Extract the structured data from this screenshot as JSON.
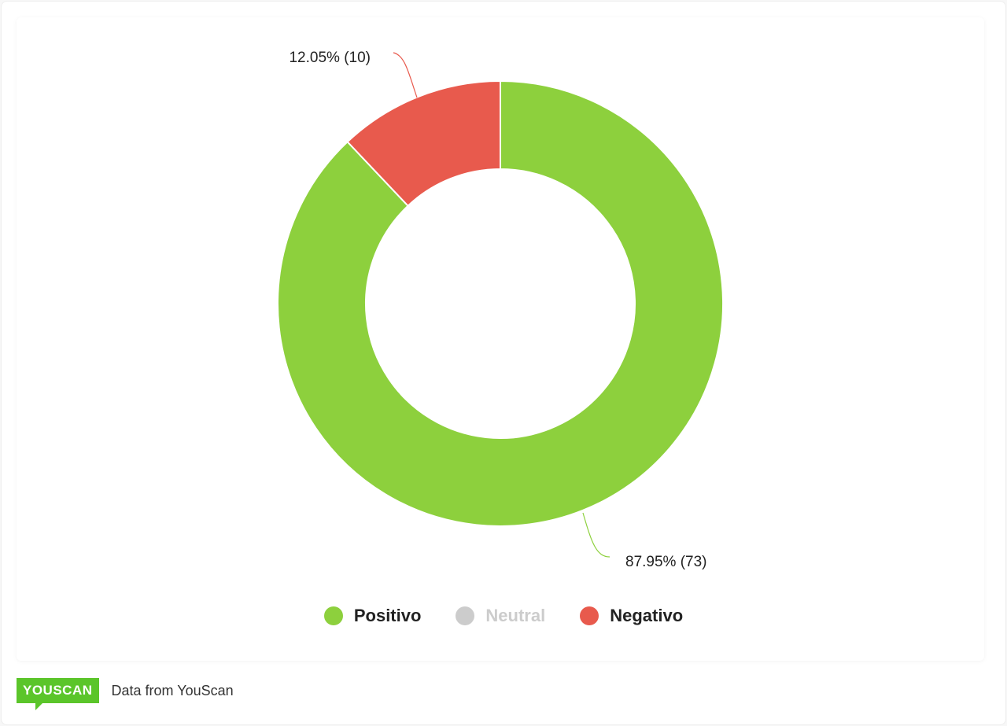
{
  "chart_data": {
    "type": "pie",
    "subtype": "donut",
    "slices": [
      {
        "name": "Positivo",
        "value": 73,
        "percent": 87.95,
        "label": "87.95% (73)",
        "color": "#8dd03d"
      },
      {
        "name": "Neutral",
        "value": 0,
        "percent": 0,
        "label": "",
        "color": "#cccccc",
        "legend_disabled": true
      },
      {
        "name": "Negativo",
        "value": 10,
        "percent": 12.05,
        "label": "12.05% (10)",
        "color": "#e85a4d"
      }
    ],
    "legend": [
      "Positivo",
      "Neutral",
      "Negativo"
    ],
    "legend_placement": "bottom-center"
  },
  "footer": {
    "logo_text": "YOUSCAN",
    "text": "Data from YouScan"
  }
}
